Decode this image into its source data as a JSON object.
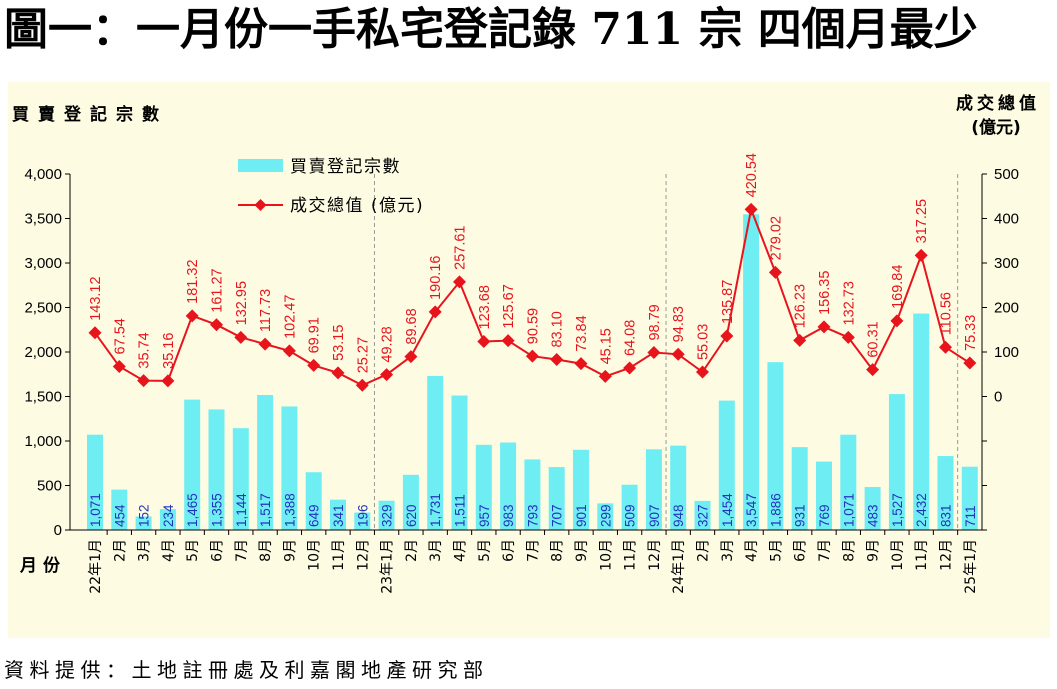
{
  "title": "圖一：一月份一手私宅登記錄 711 宗 四個月最少",
  "source": "資料提供：土地註冊處及利嘉閣地產研究部",
  "chart_data": {
    "type": "bar",
    "title": "圖一：一月份一手私宅登記錄 711 宗 四個月最少",
    "xlabel": "月份",
    "ylabel": "買賣登記宗數",
    "y2label": "成交總值",
    "y2unit": "(億元)",
    "background": "#fefbe3",
    "grid": false,
    "legend": "top-left",
    "ylim": [
      0,
      4000
    ],
    "yticks": [
      0,
      500,
      1000,
      1500,
      2000,
      2500,
      3000,
      3500,
      4000
    ],
    "ytick_labels": [
      "0",
      "500",
      "1,000",
      "1,500",
      "2,000",
      "2,500",
      "3,000",
      "3,500",
      "4,000"
    ],
    "y2lim": [
      -300,
      500
    ],
    "y2ticks": [
      0,
      100,
      200,
      300,
      400,
      500
    ],
    "y2tick_labels": [
      "0",
      "100",
      "200",
      "300",
      "400",
      "500"
    ],
    "categories": [
      "22年1月",
      "2月",
      "3月",
      "4月",
      "5月",
      "6月",
      "7月",
      "8月",
      "9月",
      "10月",
      "11月",
      "12月",
      "23年1月",
      "2月",
      "3月",
      "4月",
      "5月",
      "6月",
      "7月",
      "8月",
      "9月",
      "10月",
      "11月",
      "12月",
      "24年1月",
      "2月",
      "3月",
      "4月",
      "5月",
      "6月",
      "7月",
      "8月",
      "9月",
      "10月",
      "11月",
      "12月",
      "25年1月"
    ],
    "series": [
      {
        "name": "買賣登記宗數",
        "chart_type": "bar",
        "axis": "left",
        "color": "#6eeef2",
        "label_color": "#2233bb",
        "values": [
          1071,
          454,
          152,
          234,
          1465,
          1355,
          1144,
          1517,
          1388,
          649,
          341,
          196,
          329,
          620,
          1731,
          1511,
          957,
          983,
          793,
          707,
          901,
          299,
          509,
          907,
          948,
          327,
          1454,
          3547,
          1886,
          931,
          769,
          1071,
          483,
          1527,
          2432,
          831,
          711
        ],
        "labels": [
          "1,071",
          "454",
          "152",
          "234",
          "1,465",
          "1,355",
          "1,144",
          "1,517",
          "1,388",
          "649",
          "341",
          "196",
          "329",
          "620",
          "1,731",
          "1,511",
          "957",
          "983",
          "793",
          "707",
          "901",
          "299",
          "509",
          "907",
          "948",
          "327",
          "1,454",
          "3,547",
          "1,886",
          "931",
          "769",
          "1,071",
          "483",
          "1,527",
          "2,432",
          "831",
          "711"
        ]
      },
      {
        "name": "成交總值 (億元)",
        "chart_type": "line",
        "axis": "right",
        "marker": "diamond",
        "color": "#e8141c",
        "label_color": "#e8141c",
        "values": [
          143.12,
          67.54,
          35.74,
          35.16,
          181.32,
          161.27,
          132.95,
          117.73,
          102.47,
          69.91,
          53.15,
          25.27,
          49.28,
          89.68,
          190.16,
          257.61,
          123.68,
          125.67,
          90.59,
          83.1,
          73.84,
          45.15,
          64.08,
          98.79,
          94.83,
          55.03,
          135.87,
          420.54,
          279.02,
          126.23,
          156.35,
          132.73,
          60.31,
          169.84,
          317.25,
          110.56,
          75.33
        ],
        "labels": [
          "143.12",
          "67.54",
          "35.74",
          "35.16",
          "181.32",
          "161.27",
          "132.95",
          "117.73",
          "102.47",
          "69.91",
          "53.15",
          "25.27",
          "49.28",
          "89.68",
          "190.16",
          "257.61",
          "123.68",
          "125.67",
          "90.59",
          "83.10",
          "73.84",
          "45.15",
          "64.08",
          "98.79",
          "94.83",
          "55.03",
          "135.87",
          "420.54",
          "279.02",
          "126.23",
          "156.35",
          "132.73",
          "60.31",
          "169.84",
          "317.25",
          "110.56",
          "75.33"
        ]
      }
    ]
  }
}
